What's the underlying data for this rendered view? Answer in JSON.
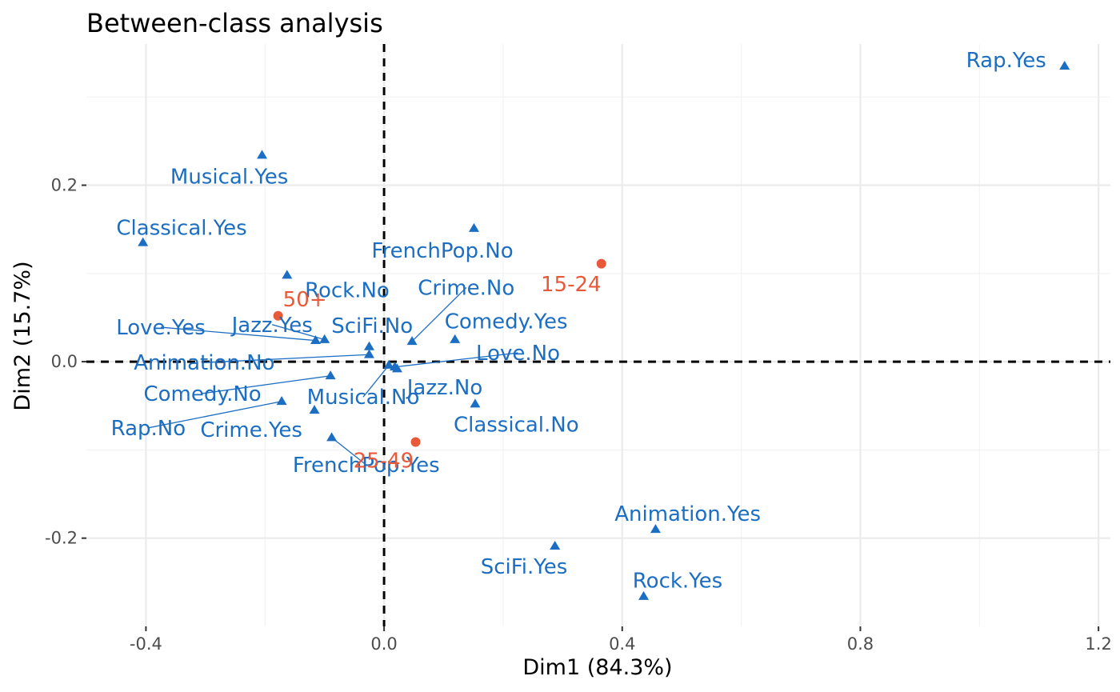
{
  "chart_data": {
    "type": "scatter",
    "title": "Between-class analysis",
    "xlabel": "Dim1 (84.3%)",
    "ylabel": "Dim2 (15.7%)",
    "xlim": [
      -0.5,
      1.22
    ],
    "ylim": [
      -0.3,
      0.36
    ],
    "x_ticks": [
      -0.4,
      0.0,
      0.4,
      0.8,
      1.2
    ],
    "x_tick_labels": [
      "-0.4",
      "0.0",
      "0.4",
      "0.8",
      "1.2"
    ],
    "y_ticks": [
      -0.2,
      0.0,
      0.2
    ],
    "y_tick_labels": [
      "-0.2",
      "0.0",
      "0.2"
    ],
    "grid": true,
    "reference_lines": {
      "x": 0,
      "y": 0,
      "style": "dashed"
    },
    "colors": {
      "variables": "#1b6ec2",
      "classes": "#e8593a"
    },
    "series": [
      {
        "marker": "triangle",
        "points": [
          {
            "label": "Rap.Yes",
            "x": 1.143,
            "y": 0.335,
            "lx": 1.045,
            "ly": 0.342
          },
          {
            "label": "Musical.Yes",
            "x": -0.205,
            "y": 0.234,
            "lx": -0.26,
            "ly": 0.21
          },
          {
            "label": "Classical.Yes",
            "x": -0.405,
            "y": 0.135,
            "lx": -0.34,
            "ly": 0.152
          },
          {
            "label": "FrenchPop.No",
            "x": 0.151,
            "y": 0.151,
            "lx": 0.098,
            "ly": 0.126
          },
          {
            "label": "Rock.No",
            "x": -0.163,
            "y": 0.098,
            "lx": -0.062,
            "ly": 0.081
          },
          {
            "label": "Crime.No",
            "x": 0.047,
            "y": 0.023,
            "lx": 0.138,
            "ly": 0.084,
            "leader": true
          },
          {
            "label": "Comedy.Yes",
            "x": 0.119,
            "y": 0.025,
            "lx": 0.205,
            "ly": 0.046
          },
          {
            "label": "SciFi.No",
            "x": -0.025,
            "y": 0.017,
            "lx": -0.02,
            "ly": 0.041
          },
          {
            "label": "Jazz.Yes",
            "x": -0.1,
            "y": 0.025,
            "lx": -0.188,
            "ly": 0.042,
            "leader": true
          },
          {
            "label": "Love.Yes",
            "x": -0.115,
            "y": 0.024,
            "lx": -0.375,
            "ly": 0.039,
            "leader": true
          },
          {
            "label": "Animation.No",
            "x": -0.025,
            "y": 0.008,
            "lx": -0.302,
            "ly": -0.001,
            "leader": true
          },
          {
            "label": "Love.No",
            "x": 0.018,
            "y": -0.006,
            "lx": 0.225,
            "ly": 0.01,
            "leader": true
          },
          {
            "label": "Musical.No",
            "x": 0.008,
            "y": -0.004,
            "lx": -0.035,
            "ly": -0.04,
            "leader": true
          },
          {
            "label": "Jazz.No",
            "x": 0.022,
            "y": -0.008,
            "lx": 0.102,
            "ly": -0.029
          },
          {
            "label": "Comedy.No",
            "x": -0.09,
            "y": -0.016,
            "lx": -0.305,
            "ly": -0.036,
            "leader": true
          },
          {
            "label": "Classical.No",
            "x": 0.153,
            "y": -0.048,
            "lx": 0.222,
            "ly": -0.071
          },
          {
            "label": "Rap.No",
            "x": -0.172,
            "y": -0.045,
            "lx": -0.396,
            "ly": -0.075,
            "leader": true
          },
          {
            "label": "Crime.Yes",
            "x": -0.117,
            "y": -0.055,
            "lx": -0.223,
            "ly": -0.077
          },
          {
            "label": "FrenchPop.Yes",
            "x": -0.088,
            "y": -0.086,
            "lx": -0.03,
            "ly": -0.117,
            "leader": true
          },
          {
            "label": "Animation.Yes",
            "x": 0.456,
            "y": -0.19,
            "lx": 0.51,
            "ly": -0.172
          },
          {
            "label": "SciFi.Yes",
            "x": 0.287,
            "y": -0.209,
            "lx": 0.235,
            "ly": -0.232
          },
          {
            "label": "Rock.Yes",
            "x": 0.436,
            "y": -0.266,
            "lx": 0.493,
            "ly": -0.248
          }
        ]
      },
      {
        "marker": "circle",
        "points": [
          {
            "label": "15-24",
            "x": 0.365,
            "y": 0.111,
            "lx": 0.314,
            "ly": 0.088
          },
          {
            "label": "50+",
            "x": -0.178,
            "y": 0.052,
            "lx": -0.133,
            "ly": 0.071
          },
          {
            "label": "25-49",
            "x": 0.053,
            "y": -0.091,
            "lx": -0.001,
            "ly": -0.112
          }
        ]
      }
    ]
  }
}
